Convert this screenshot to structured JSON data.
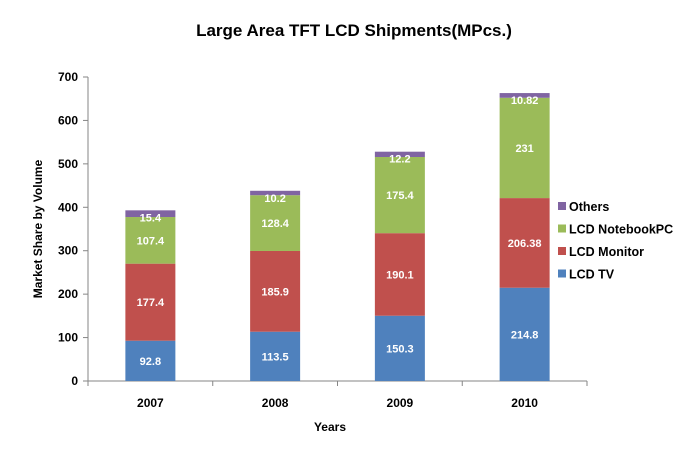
{
  "chart_data": {
    "type": "bar",
    "stacked": true,
    "title": "Large Area TFT LCD Shipments(MPcs.)",
    "xlabel": "Years",
    "ylabel": "Market Share by Volume",
    "categories": [
      "2007",
      "2008",
      "2009",
      "2010"
    ],
    "ylim": [
      0,
      700
    ],
    "yticks": [
      0,
      100,
      200,
      300,
      400,
      500,
      600,
      700
    ],
    "grid": false,
    "legend_position": "right",
    "series": [
      {
        "name": "LCD TV",
        "color": "#4F81BD",
        "values": [
          92.8,
          113.5,
          150.3,
          214.8
        ],
        "labels": [
          "92.8",
          "113.5",
          "150.3",
          "214.8"
        ]
      },
      {
        "name": "LCD Monitor",
        "color": "#C0504D",
        "values": [
          177.4,
          185.9,
          190.1,
          206.38
        ],
        "labels": [
          "177.4",
          "185.9",
          "190.1",
          "206.38"
        ]
      },
      {
        "name": "LCD NotebookPC",
        "color": "#9BBB59",
        "values": [
          107.4,
          128.4,
          175.4,
          231
        ],
        "labels": [
          "107.4",
          "128.4",
          "175.4",
          "231"
        ]
      },
      {
        "name": "Others",
        "color": "#8064A2",
        "values": [
          15.4,
          10.2,
          12.2,
          10.82
        ],
        "labels": [
          "15.4",
          "10.2",
          "12.2",
          "10.82"
        ]
      }
    ],
    "legend_order": [
      "Others",
      "LCD NotebookPC",
      "LCD Monitor",
      "LCD TV"
    ]
  }
}
